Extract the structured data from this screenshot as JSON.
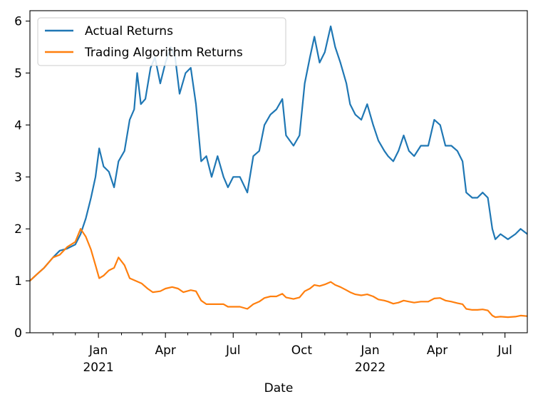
{
  "chart_data": {
    "type": "line",
    "xlabel": "Date",
    "ylabel": "",
    "title": "",
    "x_range": [
      "2020-10-01",
      "2022-07-31"
    ],
    "ylim": [
      0,
      6.2
    ],
    "grid": false,
    "legend_position": "top-left",
    "y_ticks": [
      0,
      1,
      2,
      3,
      4,
      5,
      6
    ],
    "x_ticks": [
      {
        "date": "2021-01-01",
        "label": "Jan",
        "year": "2021"
      },
      {
        "date": "2021-04-01",
        "label": "Apr",
        "year": ""
      },
      {
        "date": "2021-07-01",
        "label": "Jul",
        "year": ""
      },
      {
        "date": "2021-10-01",
        "label": "Oct",
        "year": ""
      },
      {
        "date": "2022-01-01",
        "label": "Jan",
        "year": "2022"
      },
      {
        "date": "2022-04-01",
        "label": "Apr",
        "year": ""
      },
      {
        "date": "2022-07-01",
        "label": "Jul",
        "year": ""
      }
    ],
    "minor_ticks": [
      "2020-11-01",
      "2020-12-01",
      "2021-02-01",
      "2021-03-01",
      "2021-05-01",
      "2021-06-01",
      "2021-08-01",
      "2021-09-01",
      "2021-11-01",
      "2021-12-01",
      "2022-02-01",
      "2022-03-01",
      "2022-05-01",
      "2022-06-01"
    ],
    "series": [
      {
        "name": "Actual Returns",
        "color": "#1f77b4",
        "points": [
          [
            "2020-10-01",
            1.0
          ],
          [
            "2020-10-10",
            1.12
          ],
          [
            "2020-10-20",
            1.25
          ],
          [
            "2020-11-01",
            1.45
          ],
          [
            "2020-11-10",
            1.58
          ],
          [
            "2020-11-20",
            1.62
          ],
          [
            "2020-12-01",
            1.7
          ],
          [
            "2020-12-08",
            1.9
          ],
          [
            "2020-12-15",
            2.2
          ],
          [
            "2020-12-22",
            2.6
          ],
          [
            "2020-12-28",
            3.0
          ],
          [
            "2021-01-02",
            3.55
          ],
          [
            "2021-01-08",
            3.2
          ],
          [
            "2021-01-15",
            3.1
          ],
          [
            "2021-01-22",
            2.8
          ],
          [
            "2021-01-28",
            3.3
          ],
          [
            "2021-02-05",
            3.5
          ],
          [
            "2021-02-12",
            4.1
          ],
          [
            "2021-02-18",
            4.3
          ],
          [
            "2021-02-22",
            5.0
          ],
          [
            "2021-02-27",
            4.4
          ],
          [
            "2021-03-05",
            4.5
          ],
          [
            "2021-03-12",
            5.1
          ],
          [
            "2021-03-18",
            5.3
          ],
          [
            "2021-03-25",
            4.8
          ],
          [
            "2021-04-01",
            5.2
          ],
          [
            "2021-04-08",
            5.5
          ],
          [
            "2021-04-14",
            5.3
          ],
          [
            "2021-04-20",
            4.6
          ],
          [
            "2021-04-28",
            5.0
          ],
          [
            "2021-05-05",
            5.1
          ],
          [
            "2021-05-12",
            4.4
          ],
          [
            "2021-05-19",
            3.3
          ],
          [
            "2021-05-26",
            3.4
          ],
          [
            "2021-06-02",
            3.0
          ],
          [
            "2021-06-10",
            3.4
          ],
          [
            "2021-06-18",
            3.0
          ],
          [
            "2021-06-24",
            2.8
          ],
          [
            "2021-07-01",
            3.0
          ],
          [
            "2021-07-10",
            3.0
          ],
          [
            "2021-07-20",
            2.7
          ],
          [
            "2021-07-28",
            3.4
          ],
          [
            "2021-08-05",
            3.5
          ],
          [
            "2021-08-12",
            4.0
          ],
          [
            "2021-08-20",
            4.2
          ],
          [
            "2021-08-28",
            4.3
          ],
          [
            "2021-09-05",
            4.5
          ],
          [
            "2021-09-10",
            3.8
          ],
          [
            "2021-09-20",
            3.6
          ],
          [
            "2021-09-28",
            3.8
          ],
          [
            "2021-10-05",
            4.8
          ],
          [
            "2021-10-12",
            5.3
          ],
          [
            "2021-10-18",
            5.7
          ],
          [
            "2021-10-25",
            5.2
          ],
          [
            "2021-11-01",
            5.4
          ],
          [
            "2021-11-09",
            5.9
          ],
          [
            "2021-11-15",
            5.5
          ],
          [
            "2021-11-22",
            5.2
          ],
          [
            "2021-11-30",
            4.8
          ],
          [
            "2021-12-05",
            4.4
          ],
          [
            "2021-12-12",
            4.2
          ],
          [
            "2021-12-20",
            4.1
          ],
          [
            "2021-12-28",
            4.4
          ],
          [
            "2022-01-05",
            4.0
          ],
          [
            "2022-01-12",
            3.7
          ],
          [
            "2022-01-20",
            3.5
          ],
          [
            "2022-01-25",
            3.4
          ],
          [
            "2022-02-01",
            3.3
          ],
          [
            "2022-02-08",
            3.5
          ],
          [
            "2022-02-15",
            3.8
          ],
          [
            "2022-02-22",
            3.5
          ],
          [
            "2022-03-01",
            3.4
          ],
          [
            "2022-03-10",
            3.6
          ],
          [
            "2022-03-20",
            3.6
          ],
          [
            "2022-03-28",
            4.1
          ],
          [
            "2022-04-05",
            4.0
          ],
          [
            "2022-04-12",
            3.6
          ],
          [
            "2022-04-20",
            3.6
          ],
          [
            "2022-04-28",
            3.5
          ],
          [
            "2022-05-05",
            3.3
          ],
          [
            "2022-05-10",
            2.7
          ],
          [
            "2022-05-18",
            2.6
          ],
          [
            "2022-05-25",
            2.6
          ],
          [
            "2022-06-01",
            2.7
          ],
          [
            "2022-06-08",
            2.6
          ],
          [
            "2022-06-14",
            2.0
          ],
          [
            "2022-06-18",
            1.8
          ],
          [
            "2022-06-25",
            1.9
          ],
          [
            "2022-07-05",
            1.8
          ],
          [
            "2022-07-15",
            1.9
          ],
          [
            "2022-07-22",
            2.0
          ],
          [
            "2022-07-31",
            1.9
          ]
        ]
      },
      {
        "name": "Trading Algorithm Returns",
        "color": "#ff7f0e",
        "points": [
          [
            "2020-10-01",
            1.0
          ],
          [
            "2020-10-10",
            1.12
          ],
          [
            "2020-10-20",
            1.25
          ],
          [
            "2020-11-01",
            1.45
          ],
          [
            "2020-11-10",
            1.5
          ],
          [
            "2020-11-20",
            1.65
          ],
          [
            "2020-12-01",
            1.75
          ],
          [
            "2020-12-08",
            2.0
          ],
          [
            "2020-12-15",
            1.85
          ],
          [
            "2020-12-22",
            1.6
          ],
          [
            "2020-12-28",
            1.3
          ],
          [
            "2021-01-02",
            1.05
          ],
          [
            "2021-01-08",
            1.1
          ],
          [
            "2021-01-15",
            1.2
          ],
          [
            "2021-01-22",
            1.25
          ],
          [
            "2021-01-28",
            1.45
          ],
          [
            "2021-02-05",
            1.3
          ],
          [
            "2021-02-12",
            1.05
          ],
          [
            "2021-02-20",
            1.0
          ],
          [
            "2021-02-28",
            0.95
          ],
          [
            "2021-03-08",
            0.85
          ],
          [
            "2021-03-15",
            0.78
          ],
          [
            "2021-03-25",
            0.8
          ],
          [
            "2021-04-01",
            0.85
          ],
          [
            "2021-04-10",
            0.88
          ],
          [
            "2021-04-18",
            0.85
          ],
          [
            "2021-04-25",
            0.78
          ],
          [
            "2021-05-05",
            0.82
          ],
          [
            "2021-05-12",
            0.8
          ],
          [
            "2021-05-19",
            0.62
          ],
          [
            "2021-05-26",
            0.55
          ],
          [
            "2021-06-02",
            0.55
          ],
          [
            "2021-06-10",
            0.55
          ],
          [
            "2021-06-18",
            0.55
          ],
          [
            "2021-06-24",
            0.5
          ],
          [
            "2021-07-01",
            0.5
          ],
          [
            "2021-07-10",
            0.5
          ],
          [
            "2021-07-20",
            0.46
          ],
          [
            "2021-07-28",
            0.55
          ],
          [
            "2021-08-05",
            0.6
          ],
          [
            "2021-08-12",
            0.67
          ],
          [
            "2021-08-20",
            0.7
          ],
          [
            "2021-08-28",
            0.7
          ],
          [
            "2021-09-05",
            0.75
          ],
          [
            "2021-09-10",
            0.68
          ],
          [
            "2021-09-20",
            0.65
          ],
          [
            "2021-09-28",
            0.68
          ],
          [
            "2021-10-05",
            0.8
          ],
          [
            "2021-10-12",
            0.85
          ],
          [
            "2021-10-18",
            0.92
          ],
          [
            "2021-10-25",
            0.9
          ],
          [
            "2021-11-01",
            0.93
          ],
          [
            "2021-11-09",
            0.98
          ],
          [
            "2021-11-15",
            0.92
          ],
          [
            "2021-11-22",
            0.88
          ],
          [
            "2021-11-30",
            0.82
          ],
          [
            "2021-12-05",
            0.78
          ],
          [
            "2021-12-12",
            0.74
          ],
          [
            "2021-12-20",
            0.72
          ],
          [
            "2021-12-28",
            0.74
          ],
          [
            "2022-01-05",
            0.7
          ],
          [
            "2022-01-12",
            0.64
          ],
          [
            "2022-01-20",
            0.62
          ],
          [
            "2022-01-25",
            0.6
          ],
          [
            "2022-02-01",
            0.56
          ],
          [
            "2022-02-08",
            0.58
          ],
          [
            "2022-02-15",
            0.62
          ],
          [
            "2022-02-22",
            0.6
          ],
          [
            "2022-03-01",
            0.58
          ],
          [
            "2022-03-10",
            0.6
          ],
          [
            "2022-03-20",
            0.6
          ],
          [
            "2022-03-28",
            0.66
          ],
          [
            "2022-04-05",
            0.67
          ],
          [
            "2022-04-12",
            0.62
          ],
          [
            "2022-04-20",
            0.6
          ],
          [
            "2022-04-28",
            0.57
          ],
          [
            "2022-05-05",
            0.55
          ],
          [
            "2022-05-10",
            0.46
          ],
          [
            "2022-05-18",
            0.44
          ],
          [
            "2022-05-25",
            0.44
          ],
          [
            "2022-06-01",
            0.45
          ],
          [
            "2022-06-08",
            0.43
          ],
          [
            "2022-06-14",
            0.33
          ],
          [
            "2022-06-18",
            0.3
          ],
          [
            "2022-06-25",
            0.31
          ],
          [
            "2022-07-05",
            0.3
          ],
          [
            "2022-07-15",
            0.31
          ],
          [
            "2022-07-22",
            0.33
          ],
          [
            "2022-07-31",
            0.32
          ]
        ]
      }
    ]
  }
}
